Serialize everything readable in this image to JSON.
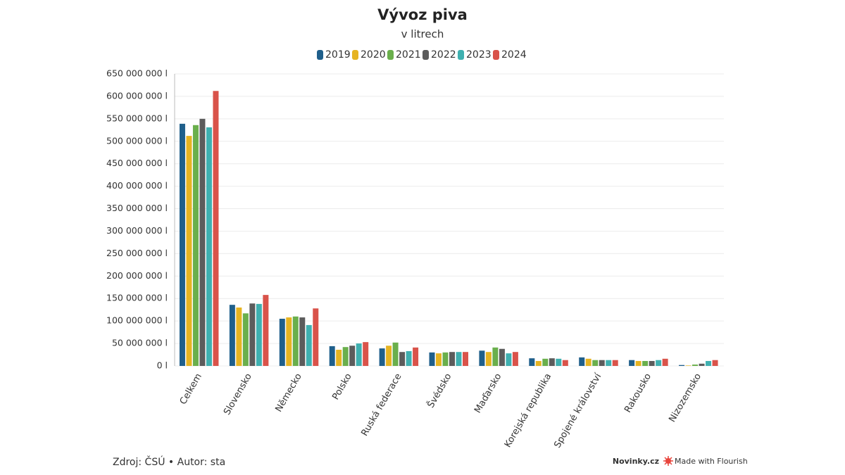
{
  "chart_data": {
    "type": "bar",
    "title": "Vývoz piva",
    "subtitle": "v litrech",
    "categories": [
      "Celkem",
      "Slovensko",
      "Německo",
      "Polsko",
      "Ruská federace",
      "Švédsko",
      "Maďarsko",
      "Korejská republika",
      "Spojené království",
      "Rakousko",
      "Nizozemsko"
    ],
    "series": [
      {
        "name": "2019",
        "color": "#1f5f8b",
        "values": [
          539000000,
          136000000,
          105000000,
          44000000,
          39000000,
          30000000,
          34000000,
          17000000,
          19000000,
          13000000,
          2000000
        ]
      },
      {
        "name": "2020",
        "color": "#e6b422",
        "values": [
          512000000,
          130000000,
          108000000,
          36000000,
          45000000,
          28000000,
          31000000,
          11000000,
          16000000,
          11000000,
          1000000
        ]
      },
      {
        "name": "2021",
        "color": "#6aaf4c",
        "values": [
          536000000,
          117000000,
          110000000,
          42000000,
          52000000,
          30000000,
          41000000,
          16000000,
          13000000,
          11000000,
          3000000
        ]
      },
      {
        "name": "2022",
        "color": "#5c5c5c",
        "values": [
          550000000,
          139000000,
          108000000,
          45000000,
          31000000,
          31000000,
          38000000,
          17000000,
          13000000,
          11000000,
          5000000
        ]
      },
      {
        "name": "2023",
        "color": "#3fb0b0",
        "values": [
          531000000,
          138000000,
          91000000,
          50000000,
          33000000,
          31000000,
          28000000,
          16000000,
          13000000,
          13000000,
          11000000
        ]
      },
      {
        "name": "2024",
        "color": "#d9534a",
        "values": [
          612000000,
          158000000,
          128000000,
          53000000,
          41000000,
          31000000,
          31000000,
          13000000,
          13000000,
          16000000,
          13000000
        ]
      }
    ],
    "ylim": [
      0,
      650000000
    ],
    "yticks": [
      {
        "value": 0,
        "label": "0 l"
      },
      {
        "value": 50000000,
        "label": "50 000 000 l"
      },
      {
        "value": 100000000,
        "label": "100 000 000 l"
      },
      {
        "value": 150000000,
        "label": "150 000 000 l"
      },
      {
        "value": 200000000,
        "label": "200 000 000 l"
      },
      {
        "value": 250000000,
        "label": "250 000 000 l"
      },
      {
        "value": 300000000,
        "label": "300 000 000 l"
      },
      {
        "value": 350000000,
        "label": "350 000 000 l"
      },
      {
        "value": 400000000,
        "label": "400 000 000 l"
      },
      {
        "value": 450000000,
        "label": "450 000 000 l"
      },
      {
        "value": 500000000,
        "label": "500 000 000 l"
      },
      {
        "value": 550000000,
        "label": "550 000 000 l"
      },
      {
        "value": 600000000,
        "label": "600 000 000 l"
      },
      {
        "value": 650000000,
        "label": "650 000 000 l"
      }
    ],
    "grid": true,
    "source": "Zdroj: ČSÚ • Autor: sta",
    "publisher": "Novinky.cz",
    "branding": "Made with Flourish"
  }
}
